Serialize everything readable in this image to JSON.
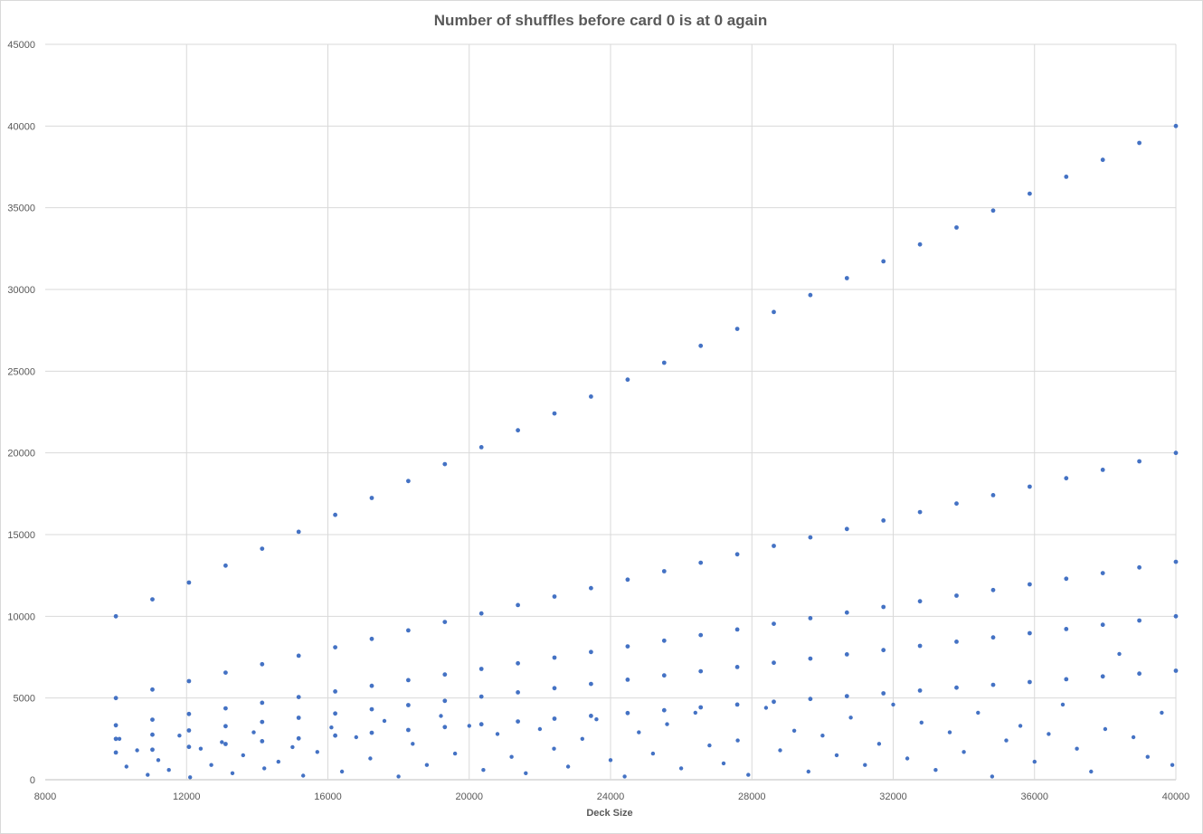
{
  "chart_data": {
    "type": "scatter",
    "title": "Number of shuffles before card 0 is at 0 again",
    "xlabel": "Deck Size",
    "ylabel": "",
    "xlim": [
      8000,
      40000
    ],
    "ylim": [
      0,
      45000
    ],
    "x_ticks": [
      "8000",
      "12000",
      "16000",
      "20000",
      "24000",
      "28000",
      "32000",
      "36000",
      "40000"
    ],
    "y_ticks": [
      "0",
      "5000",
      "10000",
      "15000",
      "20000",
      "25000",
      "30000",
      "35000",
      "40000",
      "45000"
    ],
    "grid": true,
    "legend": "none",
    "series_color": "#4472c4",
    "series": [
      {
        "points_per_band": 30,
        "bands": [
          {
            "x": [
              10000,
              40000
            ],
            "y": [
              10000,
              40000
            ]
          },
          {
            "x": [
              10000,
              40000
            ],
            "y": [
              5000,
              20000
            ]
          },
          {
            "x": [
              10000,
              40000
            ],
            "y": [
              3333,
              13333
            ]
          },
          {
            "x": [
              10000,
              40000
            ],
            "y": [
              2500,
              10000
            ]
          },
          {
            "x": [
              10000,
              40000
            ],
            "y": [
              1667,
              6667
            ]
          }
        ],
        "scatter": [
          [
            10100,
            2500
          ],
          [
            10300,
            800
          ],
          [
            10600,
            1800
          ],
          [
            10900,
            300
          ],
          [
            11200,
            1200
          ],
          [
            11500,
            600
          ],
          [
            11800,
            2700
          ],
          [
            12100,
            150
          ],
          [
            12400,
            1900
          ],
          [
            12700,
            900
          ],
          [
            13000,
            2300
          ],
          [
            13300,
            400
          ],
          [
            13600,
            1500
          ],
          [
            13900,
            2900
          ],
          [
            14200,
            700
          ],
          [
            14600,
            1100
          ],
          [
            15000,
            2000
          ],
          [
            15300,
            250
          ],
          [
            15700,
            1700
          ],
          [
            16100,
            3200
          ],
          [
            16400,
            500
          ],
          [
            16800,
            2600
          ],
          [
            17200,
            1300
          ],
          [
            17600,
            3600
          ],
          [
            18000,
            200
          ],
          [
            18400,
            2200
          ],
          [
            18800,
            900
          ],
          [
            19200,
            3900
          ],
          [
            19600,
            1600
          ],
          [
            20000,
            3300
          ],
          [
            20400,
            600
          ],
          [
            20800,
            2800
          ],
          [
            21200,
            1400
          ],
          [
            21600,
            400
          ],
          [
            22000,
            3100
          ],
          [
            22400,
            1900
          ],
          [
            22800,
            800
          ],
          [
            23200,
            2500
          ],
          [
            23600,
            3700
          ],
          [
            24000,
            1200
          ],
          [
            24400,
            200
          ],
          [
            24800,
            2900
          ],
          [
            25200,
            1600
          ],
          [
            25600,
            3400
          ],
          [
            26000,
            700
          ],
          [
            26400,
            4100
          ],
          [
            26800,
            2100
          ],
          [
            27200,
            1000
          ],
          [
            27600,
            2400
          ],
          [
            27900,
            300
          ],
          [
            28400,
            4400
          ],
          [
            28800,
            1800
          ],
          [
            29200,
            3000
          ],
          [
            29600,
            500
          ],
          [
            30000,
            2700
          ],
          [
            30400,
            1500
          ],
          [
            30800,
            3800
          ],
          [
            31200,
            900
          ],
          [
            31600,
            2200
          ],
          [
            32000,
            4600
          ],
          [
            32400,
            1300
          ],
          [
            32800,
            3500
          ],
          [
            33200,
            600
          ],
          [
            33600,
            2900
          ],
          [
            34000,
            1700
          ],
          [
            34400,
            4100
          ],
          [
            34800,
            200
          ],
          [
            35200,
            2400
          ],
          [
            35600,
            3300
          ],
          [
            36000,
            1100
          ],
          [
            36400,
            2800
          ],
          [
            36800,
            4600
          ],
          [
            37200,
            1900
          ],
          [
            37600,
            500
          ],
          [
            38000,
            3100
          ],
          [
            38400,
            7700
          ],
          [
            38800,
            2600
          ],
          [
            39200,
            1400
          ],
          [
            39600,
            4100
          ],
          [
            39900,
            900
          ]
        ]
      }
    ]
  }
}
